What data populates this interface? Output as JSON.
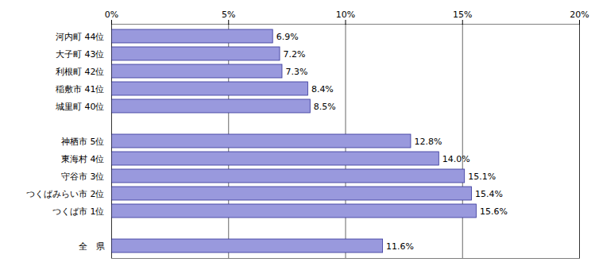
{
  "chart_data": {
    "type": "bar",
    "orientation": "horizontal",
    "categories": [
      "全　県",
      null,
      "つくば市 1位",
      "つくばみらい市 2位",
      "守谷市 3位",
      "東海村 4位",
      "神栖市 5位",
      null,
      "城里町 40位",
      "稲敷市 41位",
      "利根町 42位",
      "大子町 43位",
      "河内町 44位"
    ],
    "values": [
      11.6,
      null,
      15.6,
      15.4,
      15.1,
      14.0,
      12.8,
      null,
      8.5,
      8.4,
      7.3,
      7.2,
      6.9
    ],
    "value_labels": [
      "11.6%",
      null,
      "15.6%",
      "15.4%",
      "15.1%",
      "14.0%",
      "12.8%",
      null,
      "8.5%",
      "8.4%",
      "7.3%",
      "7.2%",
      "6.9%"
    ],
    "data_labels": true,
    "color": "#9999dd",
    "xlim": [
      0,
      20
    ],
    "xticks": [
      {
        "value": 0,
        "label": "0%"
      },
      {
        "value": 5,
        "label": "5%"
      },
      {
        "value": 10,
        "label": "10%"
      },
      {
        "value": 15,
        "label": "15%"
      },
      {
        "value": 20,
        "label": "20%"
      }
    ],
    "grid": true
  }
}
